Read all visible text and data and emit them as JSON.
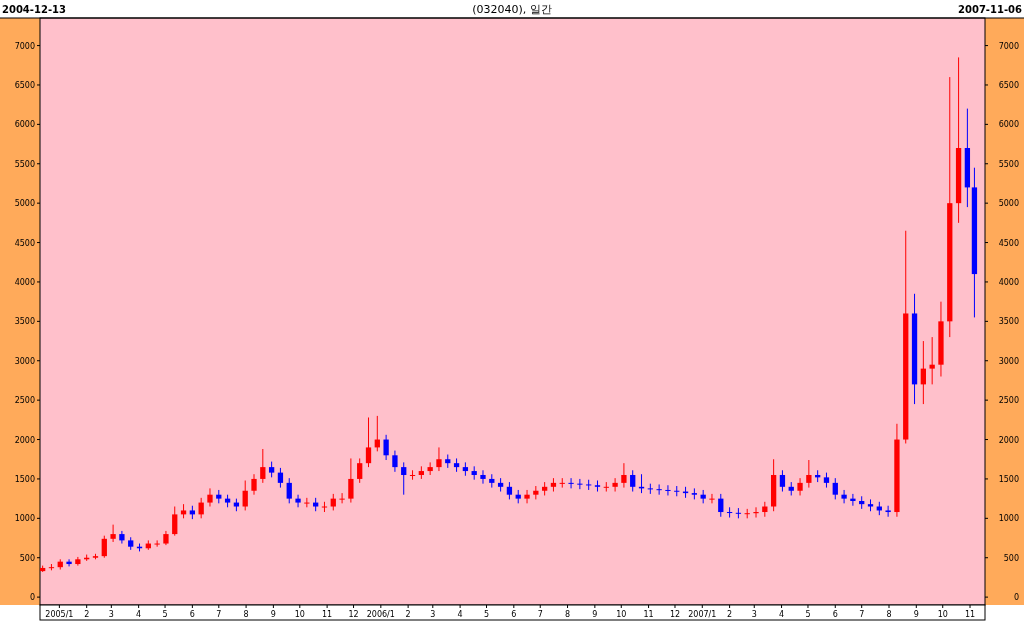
{
  "chart_data": {
    "type": "candlestick",
    "title": "(032040), 일간",
    "annotations": [
      "2004-12-13",
      "2007-11-06"
    ],
    "x": [
      "2004-12-13",
      "2004-12-23",
      "2005-01-02",
      "2005-01-12",
      "2005-01-22",
      "2005-02-01",
      "2005-02-11",
      "2005-02-21",
      "2005-03-03",
      "2005-03-13",
      "2005-03-23",
      "2005-04-02",
      "2005-04-12",
      "2005-04-22",
      "2005-05-02",
      "2005-05-12",
      "2005-05-22",
      "2005-06-01",
      "2005-06-11",
      "2005-06-21",
      "2005-07-01",
      "2005-07-11",
      "2005-07-21",
      "2005-07-31",
      "2005-08-10",
      "2005-08-20",
      "2005-08-30",
      "2005-09-09",
      "2005-09-19",
      "2005-09-29",
      "2005-10-09",
      "2005-10-19",
      "2005-10-29",
      "2005-11-08",
      "2005-11-18",
      "2005-11-28",
      "2005-12-08",
      "2005-12-18",
      "2005-12-28",
      "2006-01-07",
      "2006-01-17",
      "2006-01-27",
      "2006-02-06",
      "2006-02-16",
      "2006-02-26",
      "2006-03-08",
      "2006-03-18",
      "2006-03-28",
      "2006-04-07",
      "2006-04-17",
      "2006-04-27",
      "2006-05-07",
      "2006-05-17",
      "2006-05-27",
      "2006-06-06",
      "2006-06-16",
      "2006-06-26",
      "2006-07-06",
      "2006-07-16",
      "2006-07-26",
      "2006-08-05",
      "2006-08-15",
      "2006-08-25",
      "2006-09-04",
      "2006-09-14",
      "2006-09-24",
      "2006-10-04",
      "2006-10-14",
      "2006-10-24",
      "2006-11-03",
      "2006-11-13",
      "2006-11-23",
      "2006-12-03",
      "2006-12-13",
      "2006-12-23",
      "2007-01-02",
      "2007-01-12",
      "2007-01-22",
      "2007-02-01",
      "2007-02-11",
      "2007-02-21",
      "2007-03-03",
      "2007-03-13",
      "2007-03-23",
      "2007-04-02",
      "2007-04-12",
      "2007-04-22",
      "2007-05-02",
      "2007-05-12",
      "2007-05-22",
      "2007-06-01",
      "2007-06-11",
      "2007-06-21",
      "2007-07-01",
      "2007-07-11",
      "2007-07-21",
      "2007-07-31",
      "2007-08-10",
      "2007-08-20",
      "2007-08-30",
      "2007-09-09",
      "2007-09-19",
      "2007-09-29",
      "2007-10-09",
      "2007-10-19",
      "2007-10-29",
      "2007-11-06"
    ],
    "ohlc": [
      [
        330,
        400,
        320,
        370
      ],
      [
        370,
        420,
        340,
        380
      ],
      [
        380,
        480,
        350,
        450
      ],
      [
        450,
        480,
        390,
        420
      ],
      [
        420,
        510,
        400,
        480
      ],
      [
        480,
        540,
        460,
        500
      ],
      [
        500,
        550,
        480,
        520
      ],
      [
        520,
        780,
        500,
        740
      ],
      [
        740,
        920,
        700,
        800
      ],
      [
        800,
        840,
        680,
        720
      ],
      [
        720,
        760,
        600,
        640
      ],
      [
        640,
        680,
        580,
        620
      ],
      [
        620,
        720,
        600,
        680
      ],
      [
        680,
        720,
        640,
        680
      ],
      [
        680,
        840,
        660,
        800
      ],
      [
        800,
        1150,
        780,
        1050
      ],
      [
        1050,
        1180,
        1000,
        1100
      ],
      [
        1100,
        1160,
        990,
        1050
      ],
      [
        1050,
        1260,
        1000,
        1200
      ],
      [
        1200,
        1380,
        1150,
        1300
      ],
      [
        1300,
        1360,
        1190,
        1250
      ],
      [
        1250,
        1300,
        1140,
        1200
      ],
      [
        1200,
        1250,
        1090,
        1150
      ],
      [
        1150,
        1480,
        1100,
        1350
      ],
      [
        1350,
        1560,
        1300,
        1500
      ],
      [
        1500,
        1880,
        1450,
        1650
      ],
      [
        1650,
        1720,
        1520,
        1580
      ],
      [
        1580,
        1640,
        1390,
        1450
      ],
      [
        1450,
        1510,
        1190,
        1250
      ],
      [
        1250,
        1300,
        1140,
        1200
      ],
      [
        1200,
        1260,
        1140,
        1200
      ],
      [
        1200,
        1260,
        1090,
        1150
      ],
      [
        1150,
        1210,
        1080,
        1150
      ],
      [
        1150,
        1310,
        1100,
        1250
      ],
      [
        1250,
        1320,
        1190,
        1250
      ],
      [
        1250,
        1760,
        1200,
        1500
      ],
      [
        1500,
        1760,
        1450,
        1700
      ],
      [
        1700,
        2280,
        1650,
        1900
      ],
      [
        1900,
        2300,
        1850,
        2000
      ],
      [
        2000,
        2060,
        1740,
        1800
      ],
      [
        1800,
        1860,
        1590,
        1650
      ],
      [
        1650,
        1710,
        1300,
        1550
      ],
      [
        1550,
        1610,
        1490,
        1550
      ],
      [
        1550,
        1660,
        1500,
        1600
      ],
      [
        1600,
        1710,
        1550,
        1650
      ],
      [
        1650,
        1900,
        1600,
        1750
      ],
      [
        1750,
        1810,
        1640,
        1700
      ],
      [
        1700,
        1760,
        1590,
        1650
      ],
      [
        1650,
        1710,
        1540,
        1600
      ],
      [
        1600,
        1660,
        1490,
        1550
      ],
      [
        1550,
        1610,
        1440,
        1500
      ],
      [
        1500,
        1560,
        1390,
        1450
      ],
      [
        1450,
        1510,
        1340,
        1400
      ],
      [
        1400,
        1460,
        1240,
        1300
      ],
      [
        1300,
        1360,
        1190,
        1250
      ],
      [
        1250,
        1360,
        1190,
        1300
      ],
      [
        1300,
        1410,
        1240,
        1350
      ],
      [
        1350,
        1460,
        1290,
        1400
      ],
      [
        1400,
        1510,
        1340,
        1450
      ],
      [
        1450,
        1510,
        1390,
        1450
      ],
      [
        1450,
        1510,
        1380,
        1440
      ],
      [
        1440,
        1500,
        1370,
        1430
      ],
      [
        1430,
        1490,
        1360,
        1420
      ],
      [
        1420,
        1480,
        1340,
        1400
      ],
      [
        1400,
        1460,
        1340,
        1400
      ],
      [
        1400,
        1510,
        1340,
        1450
      ],
      [
        1450,
        1700,
        1390,
        1550
      ],
      [
        1550,
        1610,
        1340,
        1400
      ],
      [
        1400,
        1560,
        1320,
        1380
      ],
      [
        1380,
        1440,
        1310,
        1370
      ],
      [
        1370,
        1430,
        1300,
        1360
      ],
      [
        1360,
        1420,
        1290,
        1350
      ],
      [
        1350,
        1410,
        1280,
        1340
      ],
      [
        1340,
        1400,
        1260,
        1320
      ],
      [
        1320,
        1380,
        1240,
        1300
      ],
      [
        1300,
        1360,
        1190,
        1250
      ],
      [
        1250,
        1310,
        1190,
        1250
      ],
      [
        1250,
        1310,
        1020,
        1080
      ],
      [
        1080,
        1140,
        1010,
        1070
      ],
      [
        1070,
        1130,
        1000,
        1060
      ],
      [
        1060,
        1120,
        1000,
        1065
      ],
      [
        1065,
        1140,
        1010,
        1080
      ],
      [
        1080,
        1210,
        1020,
        1150
      ],
      [
        1150,
        1750,
        1090,
        1550
      ],
      [
        1550,
        1610,
        1340,
        1400
      ],
      [
        1400,
        1460,
        1290,
        1350
      ],
      [
        1350,
        1510,
        1290,
        1450
      ],
      [
        1450,
        1740,
        1390,
        1550
      ],
      [
        1550,
        1610,
        1460,
        1520
      ],
      [
        1520,
        1580,
        1390,
        1450
      ],
      [
        1450,
        1510,
        1240,
        1300
      ],
      [
        1300,
        1360,
        1190,
        1250
      ],
      [
        1250,
        1310,
        1160,
        1220
      ],
      [
        1220,
        1280,
        1120,
        1180
      ],
      [
        1180,
        1240,
        1090,
        1150
      ],
      [
        1150,
        1210,
        1040,
        1100
      ],
      [
        1100,
        1160,
        1020,
        1080
      ],
      [
        1080,
        2200,
        1020,
        2000
      ],
      [
        2000,
        4650,
        1950,
        3600
      ],
      [
        3600,
        3850,
        2450,
        2700
      ],
      [
        2700,
        3250,
        2450,
        2900
      ],
      [
        2900,
        3300,
        2700,
        2950
      ],
      [
        2950,
        3750,
        2800,
        3500
      ],
      [
        3500,
        6600,
        3300,
        5000
      ],
      [
        5000,
        6850,
        4750,
        5700
      ],
      [
        5700,
        6200,
        4950,
        5200
      ],
      [
        5200,
        5450,
        3550,
        4100
      ]
    ],
    "xlim": [
      "2004-12-10",
      "2007-11-18"
    ],
    "xticks": [
      {
        "value": "2005-01-01",
        "label": "2005/1"
      },
      {
        "value": "2005-02-01",
        "label": "2"
      },
      {
        "value": "2005-03-01",
        "label": "3"
      },
      {
        "value": "2005-04-01",
        "label": "4"
      },
      {
        "value": "2005-05-01",
        "label": "5"
      },
      {
        "value": "2005-06-01",
        "label": "6"
      },
      {
        "value": "2005-07-01",
        "label": "7"
      },
      {
        "value": "2005-08-01",
        "label": "8"
      },
      {
        "value": "2005-09-01",
        "label": "9"
      },
      {
        "value": "2005-10-01",
        "label": "10"
      },
      {
        "value": "2005-11-01",
        "label": "11"
      },
      {
        "value": "2005-12-01",
        "label": "12"
      },
      {
        "value": "2006-01-01",
        "label": "2006/1"
      },
      {
        "value": "2006-02-01",
        "label": "2"
      },
      {
        "value": "2006-03-01",
        "label": "3"
      },
      {
        "value": "2006-04-01",
        "label": "4"
      },
      {
        "value": "2006-05-01",
        "label": "5"
      },
      {
        "value": "2006-06-01",
        "label": "6"
      },
      {
        "value": "2006-07-01",
        "label": "7"
      },
      {
        "value": "2006-08-01",
        "label": "8"
      },
      {
        "value": "2006-09-01",
        "label": "9"
      },
      {
        "value": "2006-10-01",
        "label": "10"
      },
      {
        "value": "2006-11-01",
        "label": "11"
      },
      {
        "value": "2006-12-01",
        "label": "12"
      },
      {
        "value": "2007-01-01",
        "label": "2007/1"
      },
      {
        "value": "2007-02-01",
        "label": "2"
      },
      {
        "value": "2007-03-01",
        "label": "3"
      },
      {
        "value": "2007-04-01",
        "label": "4"
      },
      {
        "value": "2007-05-01",
        "label": "5"
      },
      {
        "value": "2007-06-01",
        "label": "6"
      },
      {
        "value": "2007-07-01",
        "label": "7"
      },
      {
        "value": "2007-08-01",
        "label": "8"
      },
      {
        "value": "2007-09-01",
        "label": "9"
      },
      {
        "value": "2007-10-01",
        "label": "10"
      },
      {
        "value": "2007-11-01",
        "label": "11"
      }
    ],
    "ylim": [
      -100,
      7350
    ],
    "yticks": [
      0,
      500,
      1000,
      1500,
      2000,
      2500,
      3000,
      3500,
      4000,
      4500,
      5000,
      5500,
      6000,
      6500,
      7000
    ],
    "y2lim": [
      -100,
      7350
    ],
    "y2ticks": [
      0,
      500,
      1000,
      1500,
      2000,
      2500,
      3000,
      3500,
      4000,
      4500,
      5000,
      5500,
      6000,
      6500,
      7000
    ],
    "grid": false
  }
}
